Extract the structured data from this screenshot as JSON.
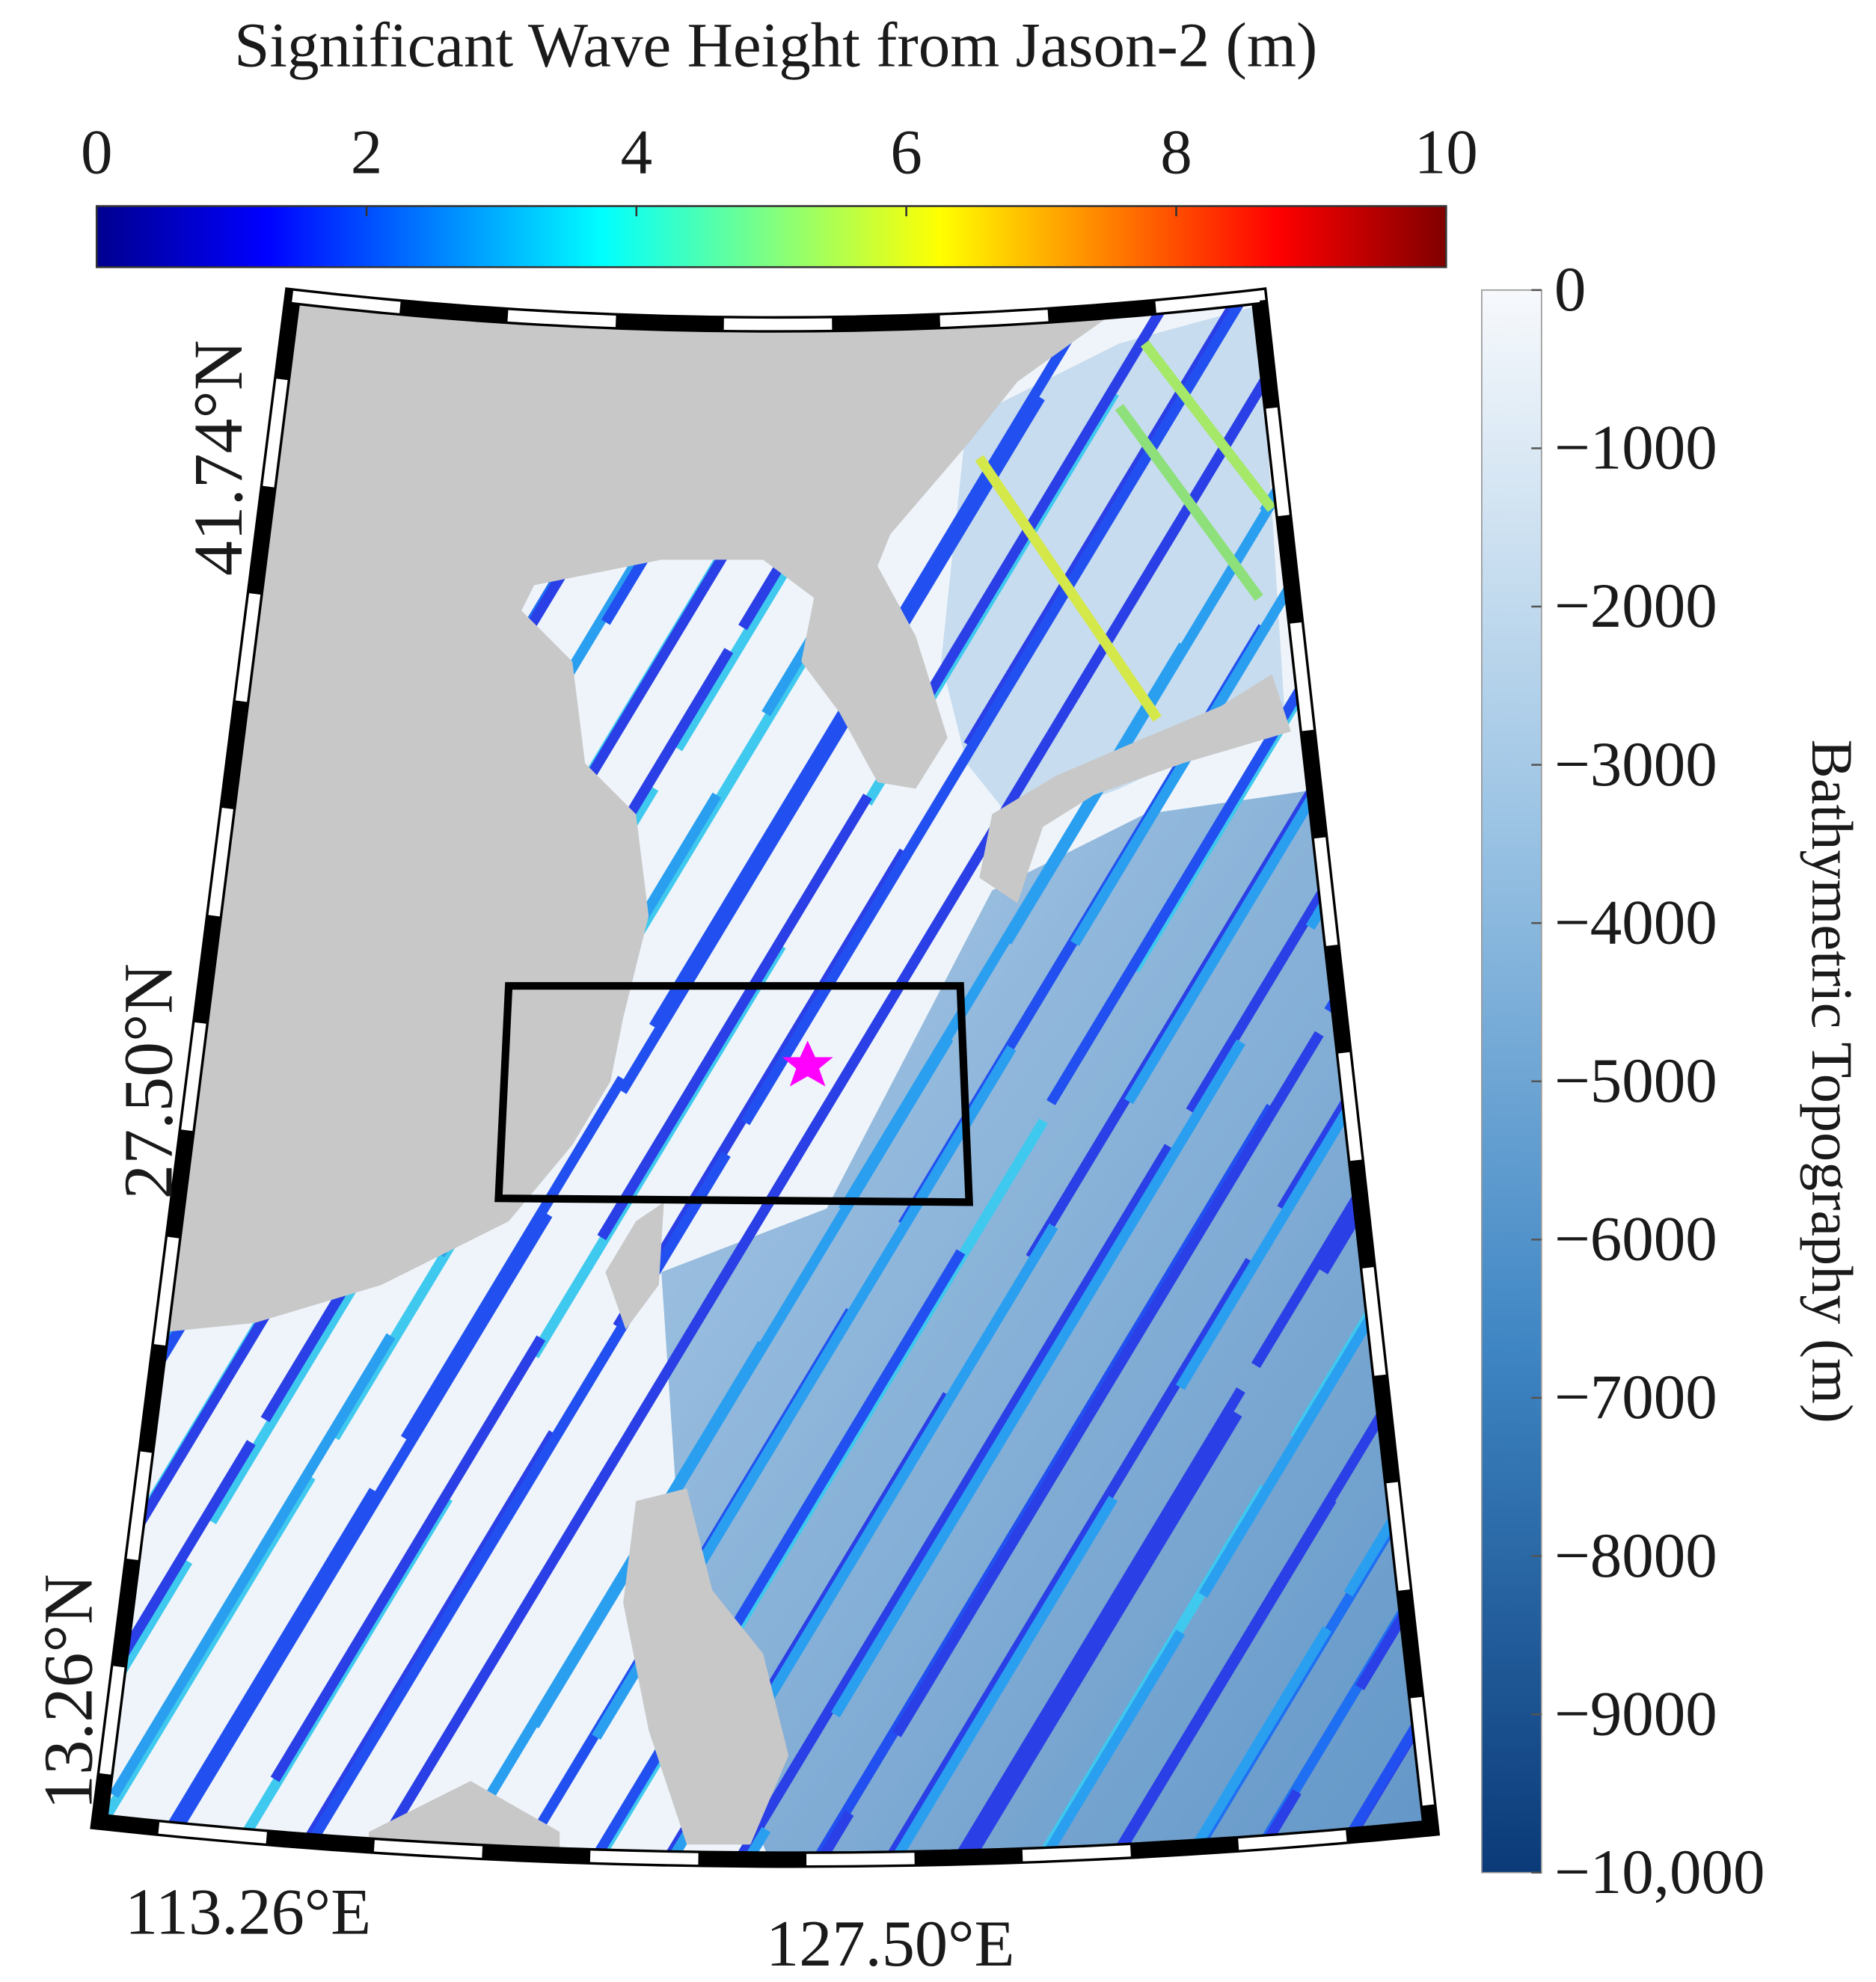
{
  "wave_colorbar": {
    "title": "Significant Wave Height from Jason-2 (m)",
    "range": [
      0,
      10
    ],
    "ticks": [
      0,
      2,
      4,
      6,
      8,
      10
    ],
    "colors": [
      "#00008f",
      "#0000ff",
      "#0080ff",
      "#00ffff",
      "#80ff80",
      "#ffff00",
      "#ff8000",
      "#ff0000",
      "#800000"
    ]
  },
  "bathymetry_colorbar": {
    "label": "Bathymetric Topography (m)",
    "range": [
      -10000,
      0
    ],
    "ticks": [
      0,
      {
        "value": -1000,
        "label": "−1000"
      },
      {
        "value": -2000,
        "label": "−2000"
      },
      {
        "value": -3000,
        "label": "−3000"
      },
      {
        "value": -4000,
        "label": "−4000"
      },
      {
        "value": -5000,
        "label": "−5000"
      },
      {
        "value": -6000,
        "label": "−6000"
      },
      {
        "value": -7000,
        "label": "−7000"
      },
      {
        "value": -8000,
        "label": "−8000"
      },
      {
        "value": -9000,
        "label": "−9000"
      },
      {
        "value": -10000,
        "label": "−10,000"
      }
    ],
    "colors": [
      "#f7f9fc",
      "#9cc4e4",
      "#3f86c4",
      "#0b3a78"
    ]
  },
  "map": {
    "lat_labels": [
      "41.74°N",
      "27.50°N",
      "13.26°N"
    ],
    "lon_labels": [
      "113.26°E",
      "127.50°E"
    ]
  }
}
